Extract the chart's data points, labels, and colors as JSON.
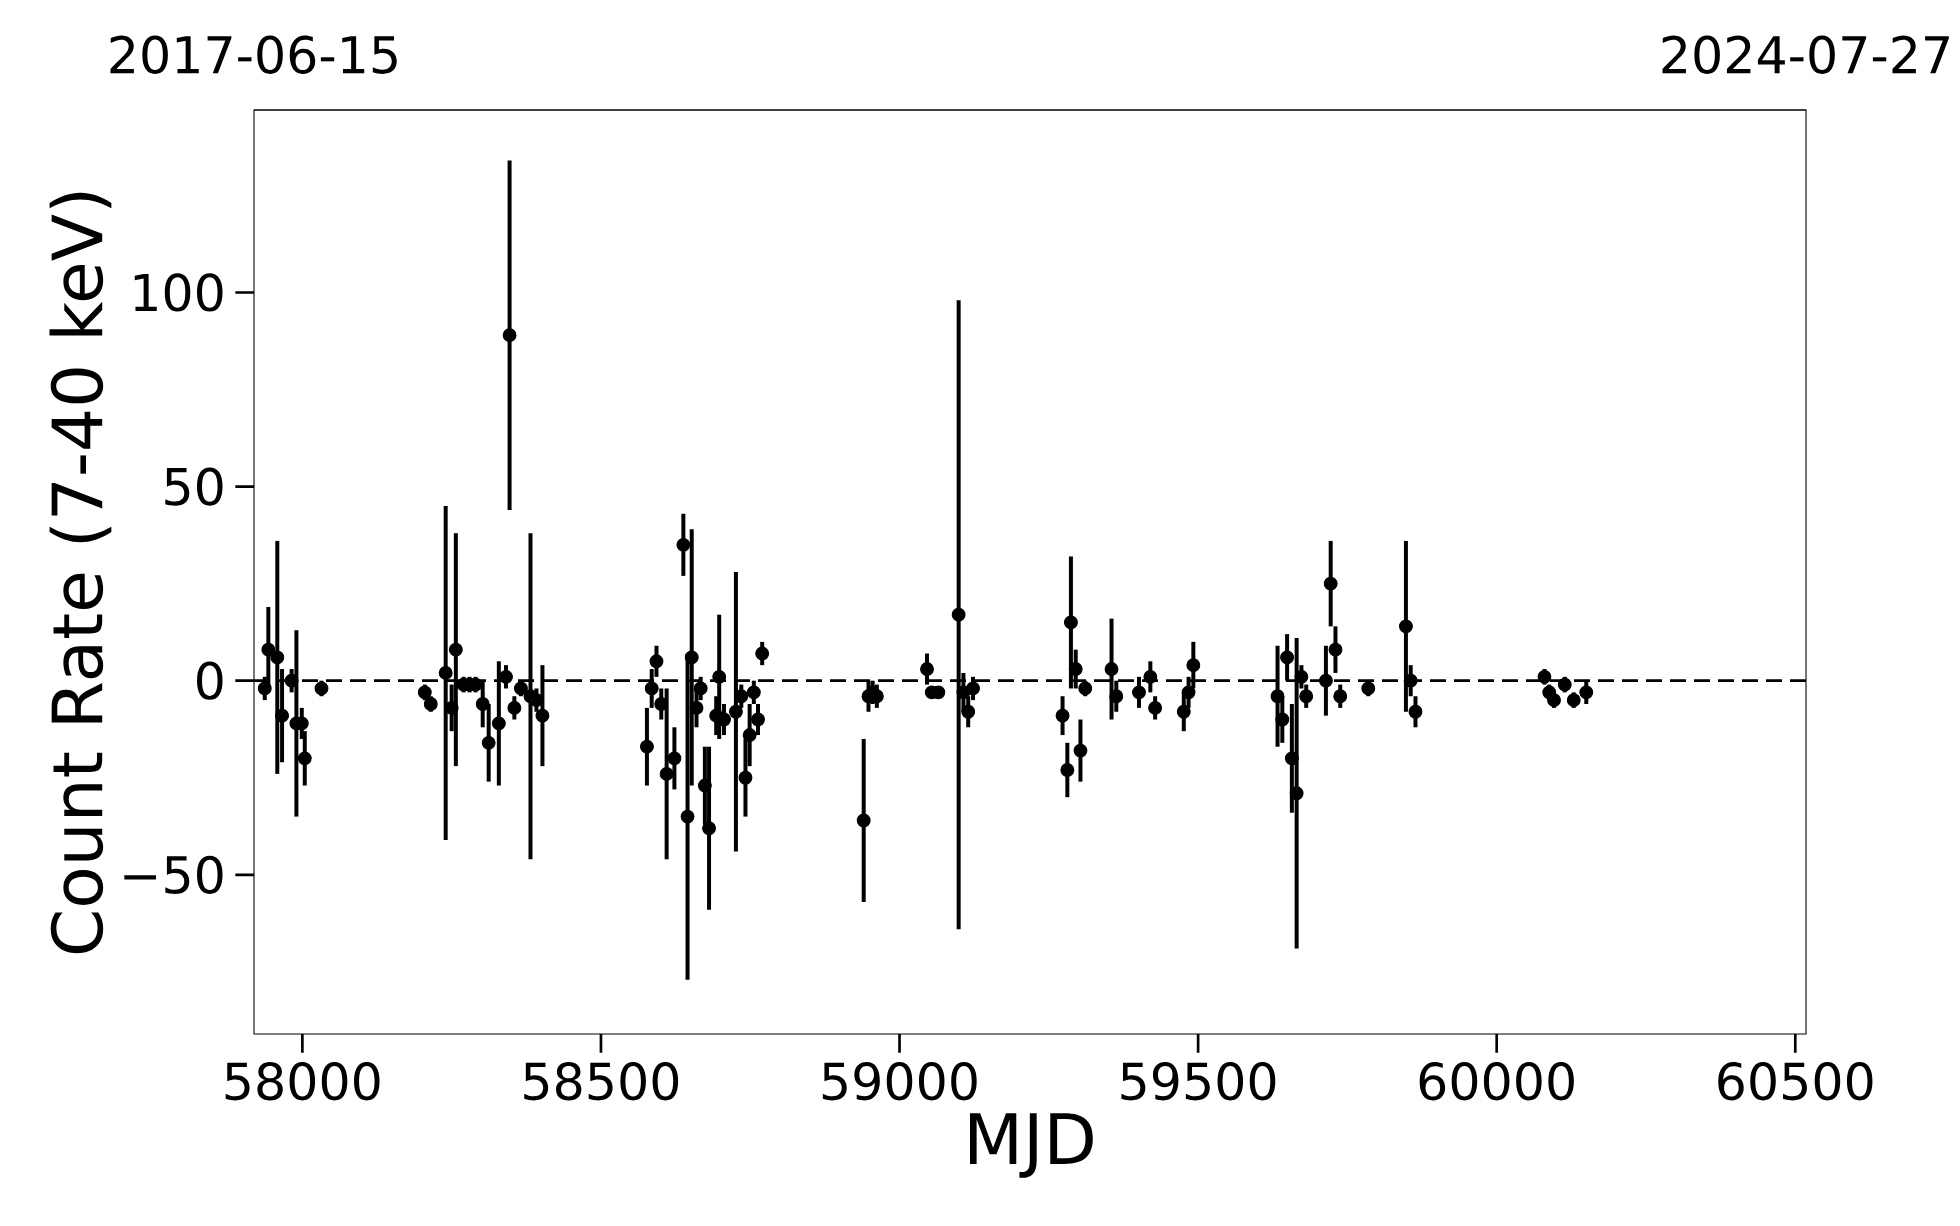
{
  "chart_data": {
    "type": "scatter",
    "xlabel": "MJD",
    "ylabel": "Count Rate (7-40 keV)",
    "x": [
      57937,
      57943,
      57958,
      57966,
      57982,
      57990,
      57999,
      58004,
      58032,
      58205,
      58215,
      58240,
      58250,
      58257,
      58270,
      58280,
      58290,
      58302,
      58312,
      58329,
      58341,
      58347,
      58355,
      58366,
      58382,
      58392,
      58402,
      58577,
      58585,
      58593,
      58601,
      58610,
      58623,
      58638,
      58645,
      58652,
      58660,
      58667,
      58674,
      58681,
      58693,
      58698,
      58706,
      58726,
      58735,
      58742,
      58749,
      58756,
      58763,
      58770,
      58940,
      58948,
      58955,
      58962,
      59046,
      59054,
      59065,
      59099,
      59107,
      59115,
      59123,
      59273,
      59281,
      59287,
      59295,
      59303,
      59311,
      59355,
      59363,
      59401,
      59420,
      59428,
      59476,
      59484,
      59492,
      59633,
      59641,
      59649,
      59657,
      59665,
      59673,
      59681,
      59714,
      59722,
      59730,
      59738,
      59785,
      59848,
      59856,
      59864,
      60080,
      60088,
      60096,
      60114,
      60129,
      60150
    ],
    "values": [
      -2,
      8,
      6,
      -9,
      0,
      -11,
      -11,
      -20,
      -2,
      -3,
      -6,
      2,
      -7,
      8,
      -1,
      -1,
      -1,
      -6,
      -16,
      -11,
      1,
      89,
      -7,
      -2,
      -4,
      -5,
      -9,
      -17,
      -2,
      5,
      -6,
      -24,
      -20,
      35,
      -35,
      6,
      -7,
      -2,
      -27,
      -38,
      -9,
      1,
      -10,
      -8,
      -4,
      -25,
      -14,
      -3,
      -10,
      7,
      -36,
      -4,
      -3,
      -4,
      3,
      -3,
      -3,
      17,
      -3,
      -8,
      -2,
      -9,
      -23,
      15,
      3,
      -18,
      -2,
      3,
      -4,
      -3,
      1,
      -7,
      -8,
      -3,
      4,
      -4,
      -10,
      6,
      -20,
      -29,
      1,
      -4,
      0,
      25,
      8,
      -4,
      -2,
      14,
      0,
      -8,
      1,
      -3,
      -5,
      -1,
      -5,
      -3
    ],
    "errors": [
      3,
      11,
      30,
      12,
      3,
      24,
      4,
      7,
      2,
      2,
      2,
      43,
      6,
      30,
      2,
      2,
      2,
      6,
      10,
      16,
      3,
      45,
      3,
      2,
      42,
      3,
      13,
      10,
      5,
      4,
      4,
      22,
      8,
      8,
      42,
      33,
      5,
      3,
      10,
      21,
      5,
      16,
      4,
      36,
      3,
      10,
      8,
      3,
      4,
      3,
      21,
      4,
      3,
      3,
      4,
      1,
      1,
      81,
      5,
      4,
      3,
      5,
      7,
      17,
      5,
      8,
      2,
      13,
      4,
      4,
      4,
      3,
      5,
      4,
      6,
      13,
      6,
      6,
      14,
      40,
      3,
      3,
      9,
      11,
      6,
      3,
      2,
      22,
      4,
      4,
      2,
      2,
      2,
      2,
      2,
      3
    ],
    "color": "#000000",
    "marker": "circle",
    "xlim": [
      57919,
      60518
    ],
    "xticks": [
      58000,
      58500,
      59000,
      59500,
      60000,
      60500
    ],
    "ylim": [
      -91,
      147
    ],
    "yticks": [
      {
        "value": -50,
        "label": "−50"
      },
      0,
      50,
      100
    ],
    "x2lim": [
      "2017-06-15",
      "2024-07-27"
    ],
    "x2ticks": [
      "2017-06-15",
      "2024-07-27"
    ],
    "ref_lines": [
      {
        "axis": "y",
        "value": 0,
        "color": "#000000",
        "line_style": "dashed"
      }
    ],
    "grid": false
  }
}
